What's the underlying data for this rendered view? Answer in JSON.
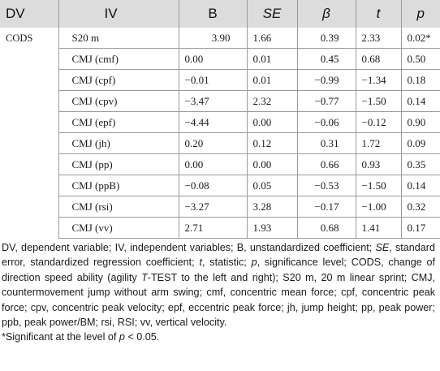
{
  "table": {
    "headers": {
      "dv": "DV",
      "iv": "IV",
      "b": "B",
      "se": "SE",
      "beta": "β",
      "t": "t",
      "p": "p"
    },
    "dv_value": "CODS",
    "rows": [
      {
        "iv": "S20 m",
        "b": "3.90",
        "se": "1.66",
        "beta": "0.39",
        "t": "2.33",
        "p": "0.02*"
      },
      {
        "iv": "CMJ (cmf)",
        "b": "0.00",
        "se": "0.01",
        "beta": "0.45",
        "t": "0.68",
        "p": "0.50"
      },
      {
        "iv": "CMJ (cpf)",
        "b": "−0.01",
        "se": "0.01",
        "beta": "−0.99",
        "t": "−1.34",
        "p": "0.18"
      },
      {
        "iv": "CMJ (cpv)",
        "b": "−3.47",
        "se": "2.32",
        "beta": "−0.77",
        "t": "−1.50",
        "p": "0.14"
      },
      {
        "iv": "CMJ (epf)",
        "b": "−4.44",
        "se": "0.00",
        "beta": "−0.06",
        "t": "−0.12",
        "p": "0.90"
      },
      {
        "iv": "CMJ (jh)",
        "b": "0.20",
        "se": "0.12",
        "beta": "0.31",
        "t": "1.72",
        "p": "0.09"
      },
      {
        "iv": "CMJ (pp)",
        "b": "0.00",
        "se": "0.00",
        "beta": "0.66",
        "t": "0.93",
        "p": "0.35"
      },
      {
        "iv": "CMJ (ppB)",
        "b": "−0.08",
        "se": "0.05",
        "beta": "−0.53",
        "t": "−1.50",
        "p": "0.14"
      },
      {
        "iv": "CMJ (rsi)",
        "b": "−3.27",
        "se": "3.28",
        "beta": "−0.17",
        "t": "−1.00",
        "p": "0.32"
      },
      {
        "iv": "CMJ (vv)",
        "b": "2.71",
        "se": "1.93",
        "beta": "0.68",
        "t": "1.41",
        "p": "0.17"
      }
    ]
  },
  "footnote": {
    "seg1": "DV, dependent variable; IV, independent variables; B, unstandardized coefficient;",
    "seg2_italic": "SE",
    "seg3": ", standard error, standardized regression coefficient;",
    "seg4_italic": "t",
    "seg5": ", statistic;",
    "seg6_italic": "p",
    "seg7": ", significance level; CODS, change of direction speed ability (agility",
    "seg8_italic": "T",
    "seg9": "-TEST to the left and right); S20 m, 20 m linear sprint; CMJ, countermovement jump without arm swing; cmf, concentric mean force; cpf, concentric peak force; cpv, concentric peak velocity; epf, eccentric peak force; jh, jump height; pp, peak power; ppb, peak power/BM; rsi, RSI; vv, vertical velocity.",
    "sig_prefix": "*Significant at the level of",
    "sig_p": "p",
    "sig_suffix": "< 0.05."
  }
}
